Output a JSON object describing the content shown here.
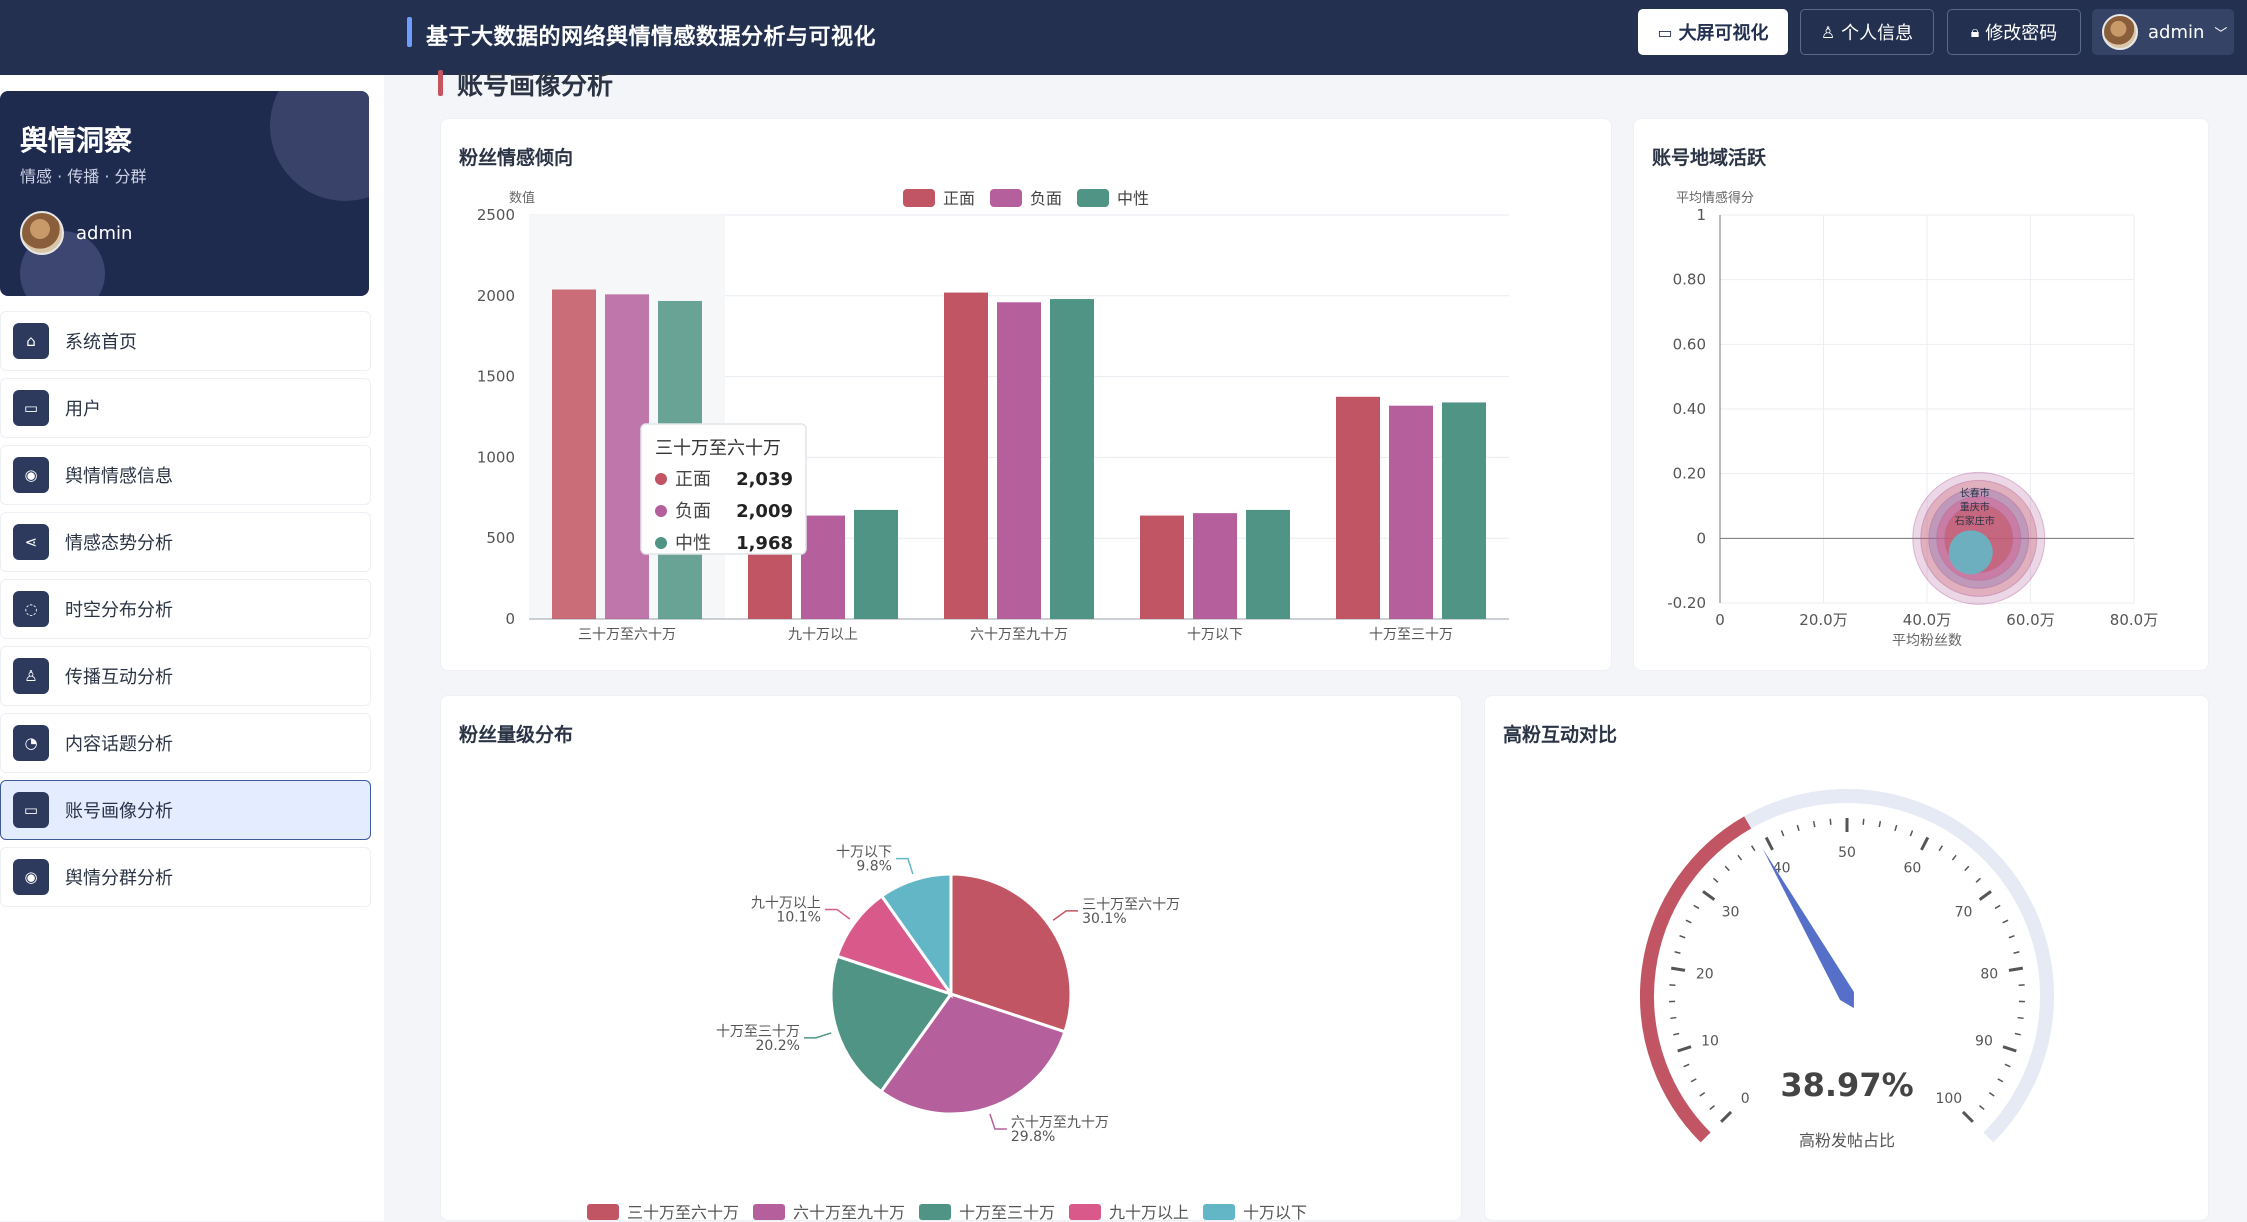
{
  "header": {
    "title": "基于大数据的网络舆情情感数据分析与可视化",
    "buttons": {
      "big_screen": "大屏可视化",
      "profile": "个人信息",
      "change_password": "修改密码"
    },
    "user": "admin"
  },
  "sidebar": {
    "brand": "舆情洞察",
    "slogan": "情感 · 传播 · 分群",
    "user": "admin",
    "items": [
      {
        "label": "系统首页",
        "icon": "home-icon",
        "glyph": "⌂"
      },
      {
        "label": "用户",
        "icon": "chat-icon",
        "glyph": "▭"
      },
      {
        "label": "舆情情感信息",
        "icon": "location-pin-icon",
        "glyph": "◉"
      },
      {
        "label": "情感态势分析",
        "icon": "share-icon",
        "glyph": "⋖"
      },
      {
        "label": "时空分布分析",
        "icon": "message-icon",
        "glyph": "◌"
      },
      {
        "label": "传播互动分析",
        "icon": "user-icon",
        "glyph": "♙"
      },
      {
        "label": "内容话题分析",
        "icon": "clock-icon",
        "glyph": "◔"
      },
      {
        "label": "账号画像分析",
        "icon": "chat-icon",
        "glyph": "▭",
        "active": true
      },
      {
        "label": "舆情分群分析",
        "icon": "location-pin-icon",
        "glyph": "◉"
      }
    ]
  },
  "main": {
    "section_title": "账号画像分析",
    "cards": {
      "fan_sentiment": "粉丝情感倾向",
      "region_activity": "账号地域活跃",
      "fan_level": "粉丝量级分布",
      "high_fan": "高粉互动对比"
    }
  },
  "chart_data": [
    {
      "id": "fan_sentiment",
      "type": "bar",
      "title": "粉丝情感倾向",
      "ylabel": "数值",
      "ylim": [
        0,
        2500
      ],
      "yticks": [
        0,
        500,
        1000,
        1500,
        2000,
        2500
      ],
      "legend_position": "top-center",
      "categories": [
        "三十万至六十万",
        "九十万以上",
        "六十万至九十万",
        "十万以下",
        "十万至三十万"
      ],
      "series": [
        {
          "name": "正面",
          "color": "#c25563",
          "values": [
            2039,
            640,
            2020,
            640,
            1375
          ]
        },
        {
          "name": "负面",
          "color": "#b55f9c",
          "values": [
            2009,
            640,
            1960,
            655,
            1320
          ]
        },
        {
          "name": "中性",
          "color": "#4f9484",
          "values": [
            1968,
            675,
            1980,
            675,
            1340
          ]
        }
      ],
      "tooltip": {
        "title": "三十万至六十万",
        "rows": [
          {
            "name": "正面",
            "value": "2,039"
          },
          {
            "name": "负面",
            "value": "2,009"
          },
          {
            "name": "中性",
            "value": "1,968"
          }
        ]
      }
    },
    {
      "id": "region_activity",
      "type": "scatter",
      "title": "账号地域活跃",
      "xlabel": "平均粉丝数",
      "ylabel": "平均情感得分",
      "xlim": [
        0,
        800000
      ],
      "ylim": [
        -0.2,
        1
      ],
      "xtick_labels": [
        "0",
        "20.0万",
        "40.0万",
        "60.0万",
        "80.0万"
      ],
      "ytick_labels": [
        "-0.20",
        "0",
        "0.20",
        "0.40",
        "0.60",
        "0.80",
        "1"
      ],
      "labels": [
        "长春市",
        "重庆市",
        "石家庄市"
      ]
    },
    {
      "id": "fan_level",
      "type": "pie",
      "title": "粉丝量级分布",
      "legend_position": "bottom",
      "slices": [
        {
          "name": "三十万至六十万",
          "pct": "30.1%",
          "value": 30.1,
          "color": "#c25563"
        },
        {
          "name": "六十万至九十万",
          "pct": "29.8%",
          "value": 29.8,
          "color": "#b55f9c"
        },
        {
          "name": "十万至三十万",
          "pct": "20.2%",
          "value": 20.2,
          "color": "#4f9484"
        },
        {
          "name": "九十万以上",
          "pct": "10.1%",
          "value": 10.1,
          "color": "#d95a8a"
        },
        {
          "name": "十万以下",
          "pct": "9.8%",
          "value": 9.8,
          "color": "#63b6c5"
        }
      ]
    },
    {
      "id": "high_fan",
      "type": "gauge",
      "title": "高粉互动对比",
      "value": 38.97,
      "value_text": "38.97%",
      "label": "高粉发帖占比",
      "min": 0,
      "max": 100,
      "tick_labels": [
        "0",
        "10",
        "20",
        "30",
        "40",
        "50",
        "60",
        "70",
        "80",
        "90",
        "100"
      ]
    }
  ]
}
